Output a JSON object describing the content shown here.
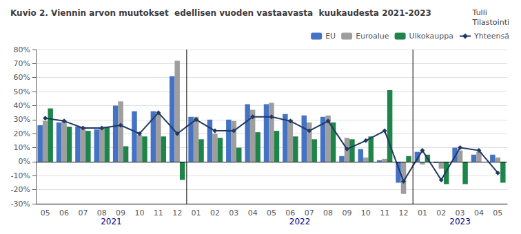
{
  "chart_data": {
    "type": "bar",
    "title": "Kuvio 2. Viennin arvon muutokset  edellisen vuoden vastaavasta  kuukaudesta 2021-2023",
    "subtitle": "Tulli\nTilastointi",
    "categories": [
      "05",
      "06",
      "07",
      "08",
      "09",
      "10",
      "11",
      "12",
      "01",
      "02",
      "03",
      "04",
      "05",
      "06",
      "07",
      "08",
      "09",
      "10",
      "11",
      "12",
      "01",
      "02",
      "03",
      "04",
      "05"
    ],
    "annotations": [
      "2021",
      "2022",
      "2023"
    ],
    "series": [
      {
        "name": "EU",
        "type": "bar",
        "color": "#4472C4",
        "values": [
          26,
          28,
          25,
          23,
          40,
          36,
          36,
          61,
          32,
          30,
          30,
          41,
          41,
          34,
          33,
          32,
          4,
          9,
          1,
          -15,
          7,
          -1,
          10,
          5,
          5
        ]
      },
      {
        "name": "Euroalue",
        "type": "bar",
        "color": "#9E9E9E",
        "values": [
          29,
          29,
          25,
          24,
          43,
          19,
          34,
          72,
          32,
          20,
          29,
          37,
          42,
          30,
          28,
          33,
          17,
          3,
          2,
          -23,
          -2,
          -5,
          8,
          7,
          3
        ]
      },
      {
        "name": "Ulkokauppa",
        "type": "bar",
        "color": "#1E8449",
        "values": [
          38,
          25,
          22,
          25,
          11,
          18,
          18,
          -13,
          16,
          17,
          10,
          21,
          22,
          18,
          16,
          28,
          16,
          18,
          51,
          4,
          5,
          -16,
          -16,
          0,
          -15
        ]
      },
      {
        "name": "Yhteensä",
        "type": "line",
        "color": "#1F3864",
        "marker": "diamond",
        "values": [
          31,
          29,
          24,
          24,
          26,
          20,
          35,
          20,
          30,
          22,
          22,
          32,
          32,
          29,
          22,
          29,
          9,
          15,
          22,
          -14,
          8,
          -13,
          10,
          8,
          -8
        ]
      }
    ],
    "ylim": [
      -30,
      80
    ],
    "yticks": [
      {
        "value": -30,
        "label": "-30%"
      },
      {
        "value": -20,
        "label": "-20%"
      },
      {
        "value": -10,
        "label": "-10%"
      },
      {
        "value": 0,
        "label": "0%"
      },
      {
        "value": 10,
        "label": "10%"
      },
      {
        "value": 20,
        "label": "20%"
      },
      {
        "value": 30,
        "label": "30%"
      },
      {
        "value": 40,
        "label": "40%"
      },
      {
        "value": 50,
        "label": "50%"
      },
      {
        "value": 60,
        "label": "60%"
      },
      {
        "value": 70,
        "label": "70%"
      },
      {
        "value": 80,
        "label": "80%"
      }
    ],
    "grid": true,
    "legend": "top-right"
  }
}
